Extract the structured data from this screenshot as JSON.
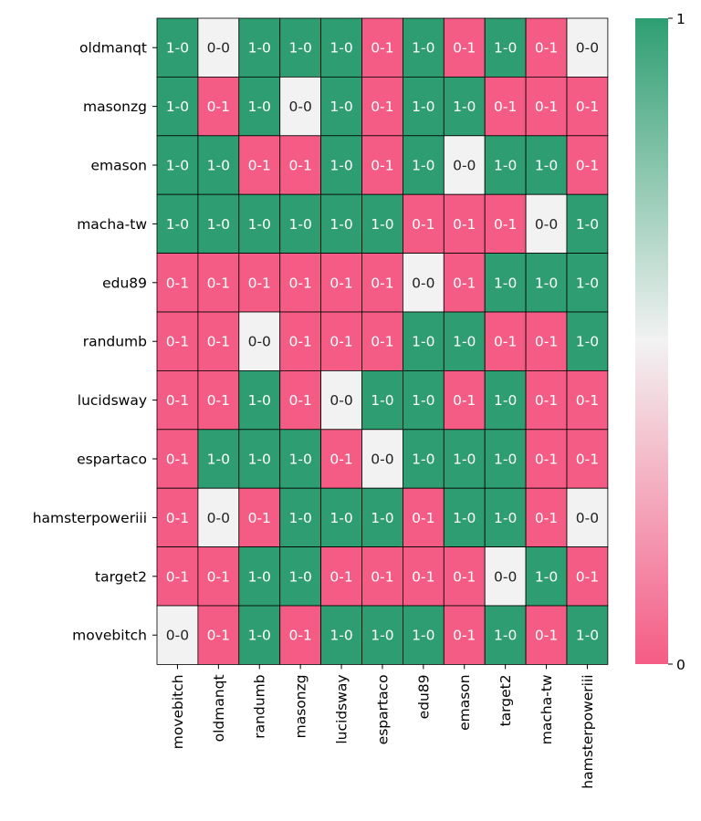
{
  "chart_data": {
    "type": "heatmap",
    "title": "",
    "xlabel": "",
    "ylabel": "",
    "rows": [
      "oldmanqt",
      "masonzg",
      "emason",
      "macha-tw",
      "edu89",
      "randumb",
      "lucidsway",
      "espartaco",
      "hamsterpoweriii",
      "target2",
      "movebitch"
    ],
    "columns": [
      "movebitch",
      "oldmanqt",
      "randumb",
      "masonzg",
      "lucidsway",
      "espartaco",
      "edu89",
      "emason",
      "target2",
      "macha-tw",
      "hamsterpoweriii"
    ],
    "values": [
      [
        1,
        0.5,
        1,
        1,
        1,
        0,
        1,
        0,
        1,
        0,
        0.5
      ],
      [
        1,
        0,
        1,
        0.5,
        1,
        0,
        1,
        1,
        0,
        0,
        0
      ],
      [
        1,
        1,
        0,
        0,
        1,
        0,
        1,
        0.5,
        1,
        1,
        0
      ],
      [
        1,
        1,
        1,
        1,
        1,
        1,
        0,
        0,
        0,
        0.5,
        1
      ],
      [
        0,
        0,
        0,
        0,
        0,
        0,
        0.5,
        0,
        1,
        1,
        1
      ],
      [
        0,
        0,
        0.5,
        0,
        0,
        0,
        1,
        1,
        0,
        0,
        1
      ],
      [
        0,
        0,
        1,
        0,
        0.5,
        1,
        1,
        0,
        1,
        0,
        0
      ],
      [
        0,
        1,
        1,
        1,
        0,
        0.5,
        1,
        1,
        1,
        0,
        0
      ],
      [
        0,
        0.5,
        0,
        1,
        1,
        1,
        0,
        1,
        1,
        0,
        0.5
      ],
      [
        0,
        0,
        1,
        1,
        0,
        0,
        0,
        0,
        0.5,
        1,
        0
      ],
      [
        0.5,
        0,
        1,
        0,
        1,
        1,
        1,
        0,
        1,
        0,
        1
      ]
    ],
    "annotations": [
      [
        "1-0",
        "0-0",
        "1-0",
        "1-0",
        "1-0",
        "0-1",
        "1-0",
        "0-1",
        "1-0",
        "0-1",
        "0-0"
      ],
      [
        "1-0",
        "0-1",
        "1-0",
        "0-0",
        "1-0",
        "0-1",
        "1-0",
        "1-0",
        "0-1",
        "0-1",
        "0-1"
      ],
      [
        "1-0",
        "1-0",
        "0-1",
        "0-1",
        "1-0",
        "0-1",
        "1-0",
        "0-0",
        "1-0",
        "1-0",
        "0-1"
      ],
      [
        "1-0",
        "1-0",
        "1-0",
        "1-0",
        "1-0",
        "1-0",
        "0-1",
        "0-1",
        "0-1",
        "0-0",
        "1-0"
      ],
      [
        "0-1",
        "0-1",
        "0-1",
        "0-1",
        "0-1",
        "0-1",
        "0-0",
        "0-1",
        "1-0",
        "1-0",
        "1-0"
      ],
      [
        "0-1",
        "0-1",
        "0-0",
        "0-1",
        "0-1",
        "0-1",
        "1-0",
        "1-0",
        "0-1",
        "0-1",
        "1-0"
      ],
      [
        "0-1",
        "0-1",
        "1-0",
        "0-1",
        "0-0",
        "1-0",
        "1-0",
        "0-1",
        "1-0",
        "0-1",
        "0-1"
      ],
      [
        "0-1",
        "1-0",
        "1-0",
        "1-0",
        "0-1",
        "0-0",
        "1-0",
        "1-0",
        "1-0",
        "0-1",
        "0-1"
      ],
      [
        "0-1",
        "0-0",
        "0-1",
        "1-0",
        "1-0",
        "1-0",
        "0-1",
        "1-0",
        "1-0",
        "0-1",
        "0-0"
      ],
      [
        "0-1",
        "0-1",
        "1-0",
        "1-0",
        "0-1",
        "0-1",
        "0-1",
        "0-1",
        "0-0",
        "1-0",
        "0-1"
      ],
      [
        "0-0",
        "0-1",
        "1-0",
        "0-1",
        "1-0",
        "1-0",
        "1-0",
        "0-1",
        "1-0",
        "0-1",
        "1-0"
      ]
    ],
    "vmin": 0,
    "vmax": 1,
    "colorbar_ticks": [
      "0",
      "1"
    ],
    "colors": {
      "low": "#f55c85",
      "mid": "#f2f2f2",
      "high": "#2e9e72",
      "cell_border": "#000000",
      "text_light": "#ffffff",
      "text_dark": "#222222"
    },
    "grid": false,
    "legend": "colorbar-right"
  }
}
